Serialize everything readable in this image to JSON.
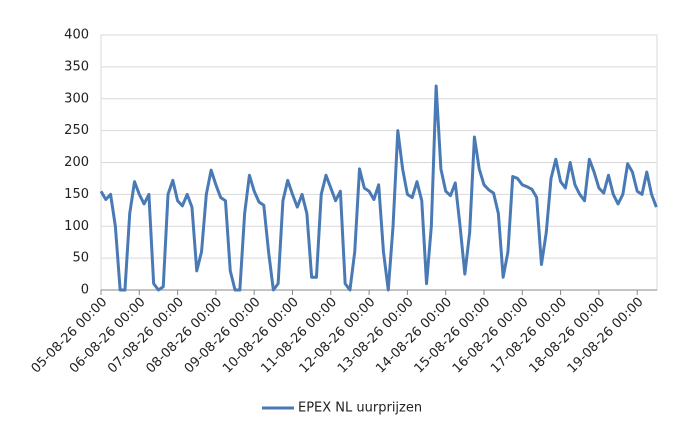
{
  "chart_data": {
    "type": "line",
    "categories": [
      "05-08-26 00:00",
      null,
      null,
      null,
      null,
      null,
      null,
      null,
      "06-08-26 00:00",
      null,
      null,
      null,
      null,
      null,
      null,
      null,
      "07-08-26 00:00",
      null,
      null,
      null,
      null,
      null,
      null,
      null,
      "08-08-26 00:00",
      null,
      null,
      null,
      null,
      null,
      null,
      null,
      "09-08-26 00:00",
      null,
      null,
      null,
      null,
      null,
      null,
      null,
      "10-08-26 00:00",
      null,
      null,
      null,
      null,
      null,
      null,
      null,
      "11-08-26 00:00",
      null,
      null,
      null,
      null,
      null,
      null,
      null,
      "12-08-26 00:00",
      null,
      null,
      null,
      null,
      null,
      null,
      null,
      "13-08-26 00:00",
      null,
      null,
      null,
      null,
      null,
      null,
      null,
      "14-08-26 00:00",
      null,
      null,
      null,
      null,
      null,
      null,
      null,
      "15-08-26 00:00",
      null,
      null,
      null,
      null,
      null,
      null,
      null,
      "16-08-26 00:00",
      null,
      null,
      null,
      null,
      null,
      null,
      null,
      "17-08-26 00:00",
      null,
      null,
      null,
      null,
      null,
      null,
      null,
      "18-08-26 00:00",
      null,
      null,
      null,
      null,
      null,
      null,
      null,
      "19-08-26 00:00",
      null,
      null,
      null,
      null
    ],
    "series": [
      {
        "name": "EPEX NL uurprijzen",
        "color": "#4a7ab5",
        "values": [
          155,
          142,
          150,
          100,
          0,
          0,
          120,
          170,
          150,
          135,
          150,
          10,
          0,
          5,
          150,
          172,
          140,
          132,
          150,
          130,
          30,
          60,
          150,
          188,
          165,
          145,
          140,
          30,
          0,
          0,
          120,
          180,
          155,
          138,
          133,
          60,
          0,
          10,
          140,
          172,
          150,
          130,
          150,
          120,
          20,
          20,
          150,
          180,
          160,
          140,
          155,
          10,
          0,
          60,
          190,
          160,
          155,
          142,
          165,
          60,
          0,
          100,
          250,
          190,
          150,
          145,
          170,
          140,
          10,
          100,
          320,
          190,
          155,
          148,
          168,
          100,
          25,
          90,
          240,
          190,
          165,
          157,
          152,
          120,
          20,
          60,
          178,
          175,
          165,
          162,
          158,
          145,
          40,
          90,
          175,
          205,
          170,
          160,
          200,
          165,
          150,
          140,
          205,
          185,
          160,
          152,
          180,
          150,
          135,
          150,
          198,
          185,
          155,
          150,
          185,
          150,
          130
        ]
      }
    ],
    "ylim": [
      0,
      400
    ],
    "yticks": [
      0,
      50,
      100,
      150,
      200,
      250,
      300,
      350,
      400
    ],
    "grid": true,
    "legend": "bottom"
  }
}
